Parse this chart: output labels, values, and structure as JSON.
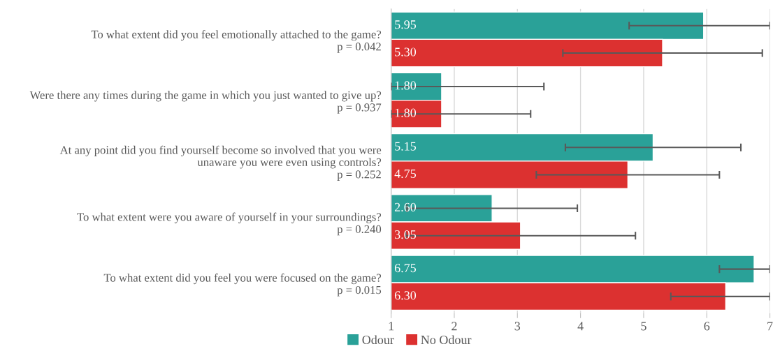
{
  "chart_data": {
    "type": "bar",
    "orientation": "horizontal",
    "categories": [
      "To what extent did you feel emotionally attached to the game?\np = 0.042",
      "Were there any times during the game in which you just wanted to give up?\np = 0.937",
      "At any point did you find yourself become so involved that you were\nunaware you were even using controls?\np = 0.252",
      "To what extent were you aware of yourself in your surroundings?\np = 0.240",
      "To what extent did you feel you were focused on the game?\np = 0.015"
    ],
    "series": [
      {
        "name": "Odour",
        "color": "#2aa198",
        "values": [
          5.95,
          1.8,
          5.15,
          2.6,
          6.75
        ],
        "value_labels": [
          "5.95",
          "1.80",
          "5.15",
          "2.60",
          "6.75"
        ],
        "errors": [
          [
            4.77,
            7
          ],
          [
            1,
            3.42
          ],
          1.39,
          1.35,
          [
            6.2,
            7
          ]
        ]
      },
      {
        "name": "No Odour",
        "color": "#dc3130",
        "values": [
          5.3,
          1.8,
          4.75,
          3.05,
          6.3
        ],
        "value_labels": [
          "5.30",
          "1.80",
          "4.75",
          "3.05",
          "6.30"
        ],
        "errors": [
          1.58,
          [
            1,
            3.21
          ],
          1.45,
          1.82,
          [
            5.43,
            7
          ]
        ]
      }
    ],
    "xlim": [
      1,
      7
    ],
    "xticks": [
      1,
      2,
      3,
      4,
      5,
      6,
      7
    ],
    "grid": "x",
    "legend": "bottom"
  }
}
